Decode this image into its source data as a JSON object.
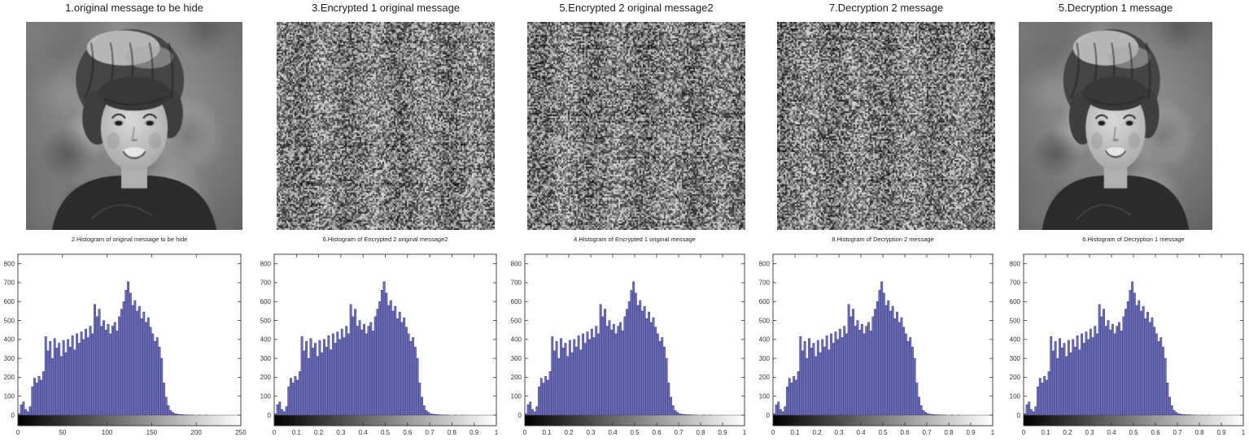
{
  "panels": {
    "images": [
      {
        "title": "1.original message to be hide",
        "kind": "portrait"
      },
      {
        "title": "3.Encrypted 1 original message",
        "kind": "noise"
      },
      {
        "title": "5.Encrypted 2 original message2",
        "kind": "noise"
      },
      {
        "title": "7.Decryption 2 message",
        "kind": "noise"
      },
      {
        "title": "5.Decryption 1 message",
        "kind": "portrait"
      }
    ]
  },
  "shared_histogram_values": [
    8,
    55,
    70,
    30,
    18,
    45,
    150,
    195,
    170,
    205,
    185,
    230,
    415,
    340,
    390,
    300,
    405,
    355,
    380,
    310,
    395,
    330,
    400,
    360,
    420,
    345,
    430,
    380,
    440,
    400,
    455,
    410,
    470,
    430,
    585,
    520,
    560,
    470,
    500,
    450,
    480,
    430,
    470,
    490,
    445,
    520,
    560,
    600,
    660,
    705,
    645,
    580,
    605,
    550,
    575,
    510,
    545,
    490,
    515,
    465,
    430,
    390,
    410,
    360,
    300,
    170,
    95,
    50,
    25,
    15,
    8,
    5,
    4,
    3,
    2,
    2,
    1,
    1,
    1,
    0,
    0,
    1,
    0,
    0,
    1,
    0,
    0,
    0,
    0,
    0,
    0,
    0,
    0,
    0,
    0,
    0,
    0,
    0,
    0,
    0
  ],
  "chart_data": [
    {
      "type": "bar",
      "title": "2.Histogram of original message to be hide",
      "xlabel": "",
      "ylabel": "",
      "xlim": [
        0,
        250
      ],
      "ylim": [
        0,
        850
      ],
      "grid": false,
      "legend": null,
      "x_ticks": [
        "0",
        "50",
        "100",
        "150",
        "200",
        "250"
      ],
      "y_ticks": [
        "0",
        "100",
        "200",
        "300",
        "400",
        "500",
        "600",
        "700",
        "800"
      ],
      "values_from": "shared_histogram_values",
      "colorbar": "grayscale-black-to-white"
    },
    {
      "type": "bar",
      "title": "6.Histogram of Encrypted 2 original message2",
      "xlabel": "",
      "ylabel": "",
      "xlim": [
        0,
        1
      ],
      "ylim": [
        0,
        850
      ],
      "grid": false,
      "legend": null,
      "x_ticks": [
        "0",
        "0.1",
        "0.2",
        "0.3",
        "0.4",
        "0.5",
        "0.6",
        "0.7",
        "0.8",
        "0.9",
        "1"
      ],
      "y_ticks": [
        "0",
        "100",
        "200",
        "300",
        "400",
        "500",
        "600",
        "700",
        "800"
      ],
      "values_from": "shared_histogram_values",
      "colorbar": "grayscale-black-to-white"
    },
    {
      "type": "bar",
      "title": "4.Histogram of Encrypted 1 original message",
      "xlabel": "",
      "ylabel": "",
      "xlim": [
        0,
        1
      ],
      "ylim": [
        0,
        850
      ],
      "grid": false,
      "legend": null,
      "x_ticks": [
        "0",
        "0.1",
        "0.2",
        "0.3",
        "0.4",
        "0.5",
        "0.6",
        "0.7",
        "0.8",
        "0.9",
        "1"
      ],
      "y_ticks": [
        "0",
        "100",
        "200",
        "300",
        "400",
        "500",
        "600",
        "700",
        "800"
      ],
      "values_from": "shared_histogram_values",
      "colorbar": "grayscale-black-to-white"
    },
    {
      "type": "bar",
      "title": "8.Histogram of Decryption 2 message",
      "xlabel": "",
      "ylabel": "",
      "xlim": [
        0,
        1
      ],
      "ylim": [
        0,
        850
      ],
      "grid": false,
      "legend": null,
      "x_ticks": [
        "0",
        "0.1",
        "0.2",
        "0.3",
        "0.4",
        "0.5",
        "0.6",
        "0.7",
        "0.8",
        "0.9",
        "1"
      ],
      "y_ticks": [
        "0",
        "100",
        "200",
        "300",
        "400",
        "500",
        "600",
        "700",
        "800"
      ],
      "values_from": "shared_histogram_values",
      "colorbar": "grayscale-black-to-white"
    },
    {
      "type": "bar",
      "title": "6.Histogram of Decryption 1 message",
      "xlabel": "",
      "ylabel": "",
      "xlim": [
        0,
        1
      ],
      "ylim": [
        0,
        850
      ],
      "grid": false,
      "legend": null,
      "x_ticks": [
        "0",
        "0.1",
        "0.2",
        "0.3",
        "0.4",
        "0.5",
        "0.6",
        "0.7",
        "0.8",
        "0.9",
        "1"
      ],
      "y_ticks": [
        "0",
        "100",
        "200",
        "300",
        "400",
        "500",
        "600",
        "700",
        "800"
      ],
      "values_from": "shared_histogram_values",
      "colorbar": "grayscale-black-to-white"
    }
  ],
  "colors": {
    "background": "#ffffff",
    "bar_fill": "#6e6eb4",
    "bar_edge": "#3a3a8c",
    "axis": "#333333",
    "tick_text": "#333333",
    "title_text": "#1c1c1c",
    "colorbar_start": "#000000",
    "colorbar_end": "#ffffff"
  }
}
